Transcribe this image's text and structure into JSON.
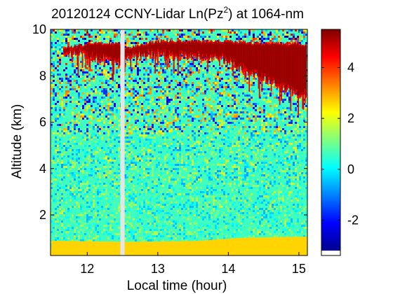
{
  "chart_data": {
    "type": "heatmap",
    "title": "20120124 CCNY-Lidar Ln(Pz",
    "title_superscript": "2",
    "title_suffix": ") at 1064-nm",
    "xlabel": "Local time (hour)",
    "ylabel": "Altitude (km)",
    "xlim": [
      11.48,
      15.12
    ],
    "ylim": [
      0.25,
      10
    ],
    "x_ticks": [
      12,
      13,
      14,
      15
    ],
    "y_ticks": [
      2,
      4,
      6,
      8,
      10
    ],
    "colorbar": {
      "colormap": "jet",
      "range": [
        -3.2,
        5.5
      ],
      "ticks": [
        -2,
        0,
        2,
        4
      ],
      "under_color": "#ffffff"
    },
    "data_gap": {
      "x_start": 12.47,
      "x_end": 12.53,
      "color": "#e6e6e6"
    },
    "layers": {
      "boundary_layer_value": 2.6,
      "boundary_layer_top": [
        {
          "x": 11.5,
          "y": 0.85
        },
        {
          "x": 12.5,
          "y": 0.85
        },
        {
          "x": 13.5,
          "y": 0.9
        },
        {
          "x": 14.2,
          "y": 1.05
        },
        {
          "x": 15.1,
          "y": 1.05
        }
      ],
      "background_value": 0.6,
      "noise_above_km": 5.5,
      "cloud_value": 5.3,
      "cloud_base": [
        {
          "x": 11.66,
          "y": 8.95
        },
        {
          "x": 11.9,
          "y": 8.9
        },
        {
          "x": 12.3,
          "y": 8.6
        },
        {
          "x": 12.47,
          "y": 8.6
        },
        {
          "x": 12.53,
          "y": 8.8
        },
        {
          "x": 12.9,
          "y": 8.9
        },
        {
          "x": 13.3,
          "y": 8.8
        },
        {
          "x": 13.6,
          "y": 8.8
        },
        {
          "x": 13.9,
          "y": 8.7
        },
        {
          "x": 14.3,
          "y": 8.1
        },
        {
          "x": 14.7,
          "y": 7.6
        },
        {
          "x": 15.0,
          "y": 7.1
        },
        {
          "x": 15.1,
          "y": 7.2
        }
      ],
      "cloud_top": [
        {
          "x": 11.66,
          "y": 9.2
        },
        {
          "x": 12.0,
          "y": 9.4
        },
        {
          "x": 12.47,
          "y": 9.4
        },
        {
          "x": 12.53,
          "y": 9.2
        },
        {
          "x": 13.0,
          "y": 9.5
        },
        {
          "x": 13.5,
          "y": 9.5
        },
        {
          "x": 14.0,
          "y": 9.5
        },
        {
          "x": 14.5,
          "y": 9.4
        },
        {
          "x": 15.0,
          "y": 9.4
        },
        {
          "x": 15.1,
          "y": 9.3
        }
      ]
    }
  }
}
